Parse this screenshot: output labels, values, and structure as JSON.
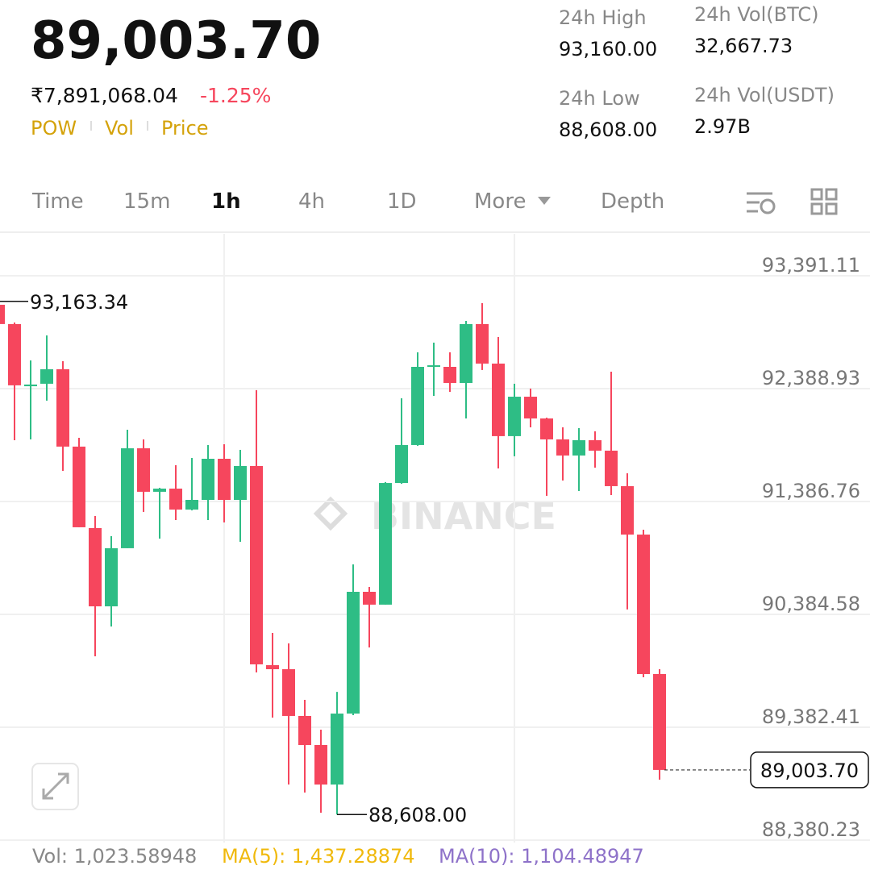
{
  "header": {
    "price": "89,003.70",
    "fiat_price": "₹7,891,068.04",
    "change": "-1.25%",
    "indicators": [
      "POW",
      "Vol",
      "Price"
    ],
    "stats": [
      {
        "label": "24h High",
        "value": "93,160.00"
      },
      {
        "label": "24h Low",
        "value": "88,608.00"
      },
      {
        "label": "24h Vol(BTC)",
        "value": "32,667.73"
      },
      {
        "label": "24h Vol(USDT)",
        "value": "2.97B"
      }
    ]
  },
  "tabs": [
    "Time",
    "15m",
    "1h",
    "4h",
    "1D",
    "More",
    "Depth"
  ],
  "active_tab_index": 2,
  "chart_data": {
    "type": "candlestick",
    "watermark": "BINANCE",
    "up_color": "#2ebd85",
    "down_color": "#f6465d",
    "grid": true,
    "open": [
      93133,
      92962,
      92410,
      92432,
      92561,
      91874,
      91151,
      90456,
      90972,
      91859,
      91473,
      91501,
      91315,
      91401,
      91766,
      91401,
      91702,
      89934,
      89898,
      89483,
      89225,
      88874,
      89504,
      90585,
      90471,
      91551,
      91888,
      92582,
      92582,
      92439,
      92962,
      92611,
      91967,
      92317,
      92124,
      91938,
      91795,
      91931,
      91838,
      91523,
      91093,
      89855
    ],
    "high": [
      93163.34,
      92976,
      92639,
      92861,
      92632,
      91952,
      91258,
      91079,
      92024,
      91938,
      91508,
      91709,
      91773,
      91888,
      91895,
      91845,
      92375,
      90220,
      90127,
      89626,
      89361,
      89697,
      90828,
      90628,
      91559,
      92303,
      92711,
      92797,
      92711,
      92990,
      93148,
      92847,
      92432,
      92389,
      92131,
      92045,
      92038,
      92010,
      92539,
      91637,
      91136,
      89898
    ],
    "low": [
      92962,
      91931,
      91938,
      92282,
      91659,
      91158,
      90012,
      90277,
      90972,
      91294,
      91057,
      91222,
      91308,
      91222,
      91201,
      91029,
      89869,
      89468,
      88874,
      88803,
      88624,
      88608,
      89490,
      90091,
      90471,
      91544,
      91881,
      92324,
      92360,
      92124,
      92554,
      91680,
      91788,
      92045,
      91437,
      91573,
      91480,
      91687,
      91444,
      90428,
      89826,
      88917
    ],
    "close": [
      92962,
      92418,
      92425,
      92561,
      91874,
      91158,
      90456,
      90972,
      91859,
      91473,
      91501,
      91315,
      91401,
      91766,
      91401,
      91702,
      89941,
      89898,
      89483,
      89225,
      88874,
      89504,
      90585,
      90471,
      91551,
      91888,
      92582,
      92596,
      92439,
      92962,
      92611,
      91967,
      92317,
      92124,
      91938,
      91795,
      91931,
      91838,
      91523,
      91093,
      89855,
      89003.7
    ],
    "ylim": [
      88359,
      93763
    ],
    "yticks": [
      {
        "value": 88380.23,
        "label": "88,380.23"
      },
      {
        "value": 89382.41,
        "label": "89,382.41"
      },
      {
        "value": 90384.58,
        "label": "90,384.58"
      },
      {
        "value": 91386.76,
        "label": "91,386.76"
      },
      {
        "value": 92388.93,
        "label": "92,388.93"
      },
      {
        "value": 93391.11,
        "label": "93,391.11"
      }
    ],
    "high_marker": {
      "value": 93163.34,
      "label": "93,163.34"
    },
    "low_marker": {
      "value": 88608,
      "label": "88,608.00"
    },
    "last_price": {
      "value": 89003.7,
      "label": "89,003.70"
    }
  },
  "footer": [
    "Vol: 1,023.58948",
    "MA(5): 1,437.28874",
    "MA(10): 1,104.48947"
  ]
}
